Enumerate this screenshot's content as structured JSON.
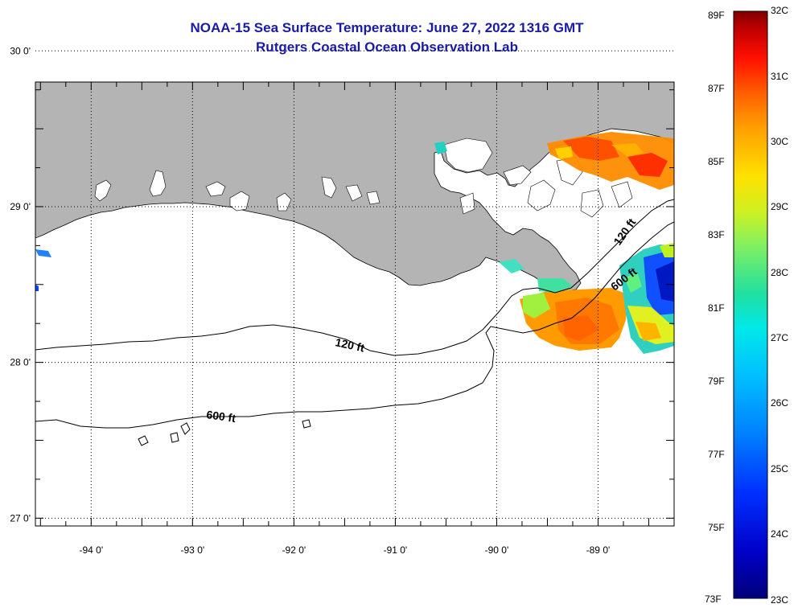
{
  "title": {
    "line1": "NOAA-15 Sea Surface Temperature:  June 27, 2022 1316 GMT",
    "line2": "Rutgers Coastal Ocean Observation Lab"
  },
  "map": {
    "lon_range": [
      -94.55,
      -88.25
    ],
    "lat_range": [
      26.95,
      29.8
    ],
    "x_ticks": [
      {
        "lon": -94,
        "label": "-94 0'"
      },
      {
        "lon": -93,
        "label": "-93 0'"
      },
      {
        "lon": -92,
        "label": "-92 0'"
      },
      {
        "lon": -91,
        "label": "-91 0'"
      },
      {
        "lon": -90,
        "label": "-90 0'"
      },
      {
        "lon": -89,
        "label": "-89 0'"
      }
    ],
    "y_ticks": [
      {
        "lat": 30,
        "label": "30 0'"
      },
      {
        "lat": 29,
        "label": "29 0'"
      },
      {
        "lat": 28,
        "label": "28 0'"
      },
      {
        "lat": 27,
        "label": "27 0'"
      }
    ],
    "land_color": "#b4b4b4",
    "contours": [
      {
        "label": "120 ft"
      },
      {
        "label": "600 ft"
      }
    ]
  },
  "colorbar": {
    "colors": [
      "#00007a",
      "#0000c8",
      "#0030ff",
      "#0080ff",
      "#00c0ff",
      "#00e8e8",
      "#20e0a0",
      "#80f060",
      "#d0f020",
      "#ffe000",
      "#ffa000",
      "#ff6000",
      "#ff1000",
      "#c00000",
      "#800000"
    ],
    "fahrenheit": [
      "89F",
      "87F",
      "85F",
      "83F",
      "81F",
      "79F",
      "77F",
      "75F",
      "73F"
    ],
    "celsius": [
      "32C",
      "31C",
      "30C",
      "29C",
      "28C",
      "27C",
      "26C",
      "25C",
      "24C",
      "23C"
    ]
  }
}
